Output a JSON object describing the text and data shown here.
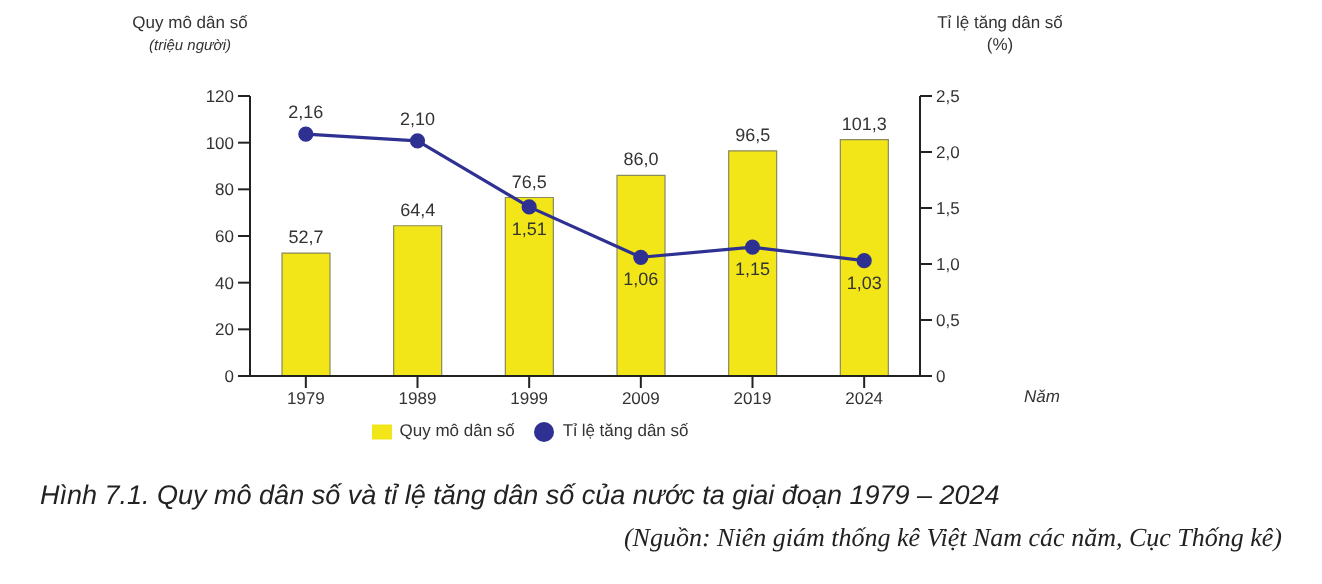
{
  "chart_data": {
    "type": "bar",
    "title": "Hình 7.1. Quy mô dân số và tỉ lệ tăng dân số của nước ta giai đoạn 1979 – 2024",
    "annotations": [
      "(Nguồn: Niên giám thống kê Việt Nam các năm, Cục Thống kê)"
    ],
    "xlabel": "Năm",
    "ylabel": "Quy mô dân số\n(triệu người)",
    "y2label": "Tỉ lệ tăng dân số\n(%)",
    "categories": [
      "1979",
      "1989",
      "1999",
      "2009",
      "2019",
      "2024"
    ],
    "series": [
      {
        "name": "Quy mô dân số",
        "color": "#f2e619",
        "values": [
          52.7,
          64.4,
          76.5,
          86.0,
          96.5,
          101.3
        ],
        "value_labels": [
          "52,7",
          "64,4",
          "76,5",
          "86,0",
          "96,5",
          "101,3"
        ]
      },
      {
        "name": "Tỉ lệ tăng dân số",
        "type": "line",
        "axis": "y2",
        "color": "#2e3192",
        "values": [
          2.16,
          2.1,
          1.51,
          1.06,
          1.15,
          1.03
        ],
        "value_labels": [
          "2,16",
          "2,10",
          "1,51",
          "1,06",
          "1,15",
          "1,03"
        ]
      }
    ],
    "ylim": [
      0,
      120
    ],
    "yticks": [
      0,
      20,
      40,
      60,
      80,
      100,
      120
    ],
    "y2lim": [
      0,
      2.5
    ],
    "y2ticks": [
      {
        "value": 0,
        "label": "0"
      },
      {
        "value": 0.5,
        "label": "0,5"
      },
      {
        "value": 1,
        "label": "1,0"
      },
      {
        "value": 1.5,
        "label": "1,5"
      },
      {
        "value": 2,
        "label": "2,0"
      },
      {
        "value": 2.5,
        "label": "2,5"
      }
    ],
    "grid": false,
    "legend": "bottom",
    "marker": "circle",
    "line_style": "solid"
  }
}
